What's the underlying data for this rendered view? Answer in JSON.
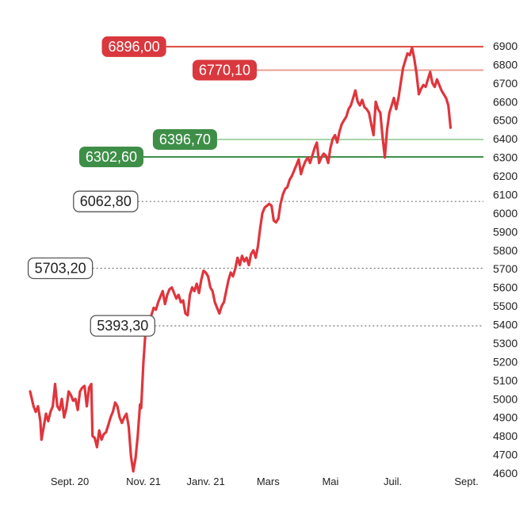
{
  "chart_data": {
    "type": "line",
    "title": "",
    "xlabel": "",
    "ylabel": "",
    "ylim": [
      4600,
      6900
    ],
    "y_ticks": [
      4600,
      4700,
      4800,
      4900,
      5000,
      5100,
      5200,
      5300,
      5400,
      5500,
      5600,
      5700,
      5800,
      5900,
      6000,
      6100,
      6200,
      6300,
      6400,
      6500,
      6600,
      6700,
      6800,
      6900
    ],
    "x_ticks": [
      {
        "label": "Sept. 20",
        "x": 35
      },
      {
        "label": "Nov. 21",
        "x": 100
      },
      {
        "label": "Janv. 21",
        "x": 155
      },
      {
        "label": "Mars",
        "x": 210
      },
      {
        "label": "Mai",
        "x": 265
      },
      {
        "label": "Juil.",
        "x": 320
      },
      {
        "label": "Sept.",
        "x": 385
      }
    ],
    "x_range": [
      0,
      400
    ],
    "series": [
      {
        "color": "#e0353c",
        "points": [
          [
            0,
            5040
          ],
          [
            3,
            4960
          ],
          [
            5,
            4930
          ],
          [
            7,
            4960
          ],
          [
            9,
            4880
          ],
          [
            10,
            4780
          ],
          [
            12,
            4850
          ],
          [
            14,
            4920
          ],
          [
            16,
            4880
          ],
          [
            18,
            4930
          ],
          [
            20,
            4960
          ],
          [
            22,
            5080
          ],
          [
            24,
            4960
          ],
          [
            26,
            4940
          ],
          [
            28,
            5000
          ],
          [
            30,
            4900
          ],
          [
            32,
            4950
          ],
          [
            34,
            5040
          ],
          [
            36,
            5020
          ],
          [
            38,
            4990
          ],
          [
            40,
            5000
          ],
          [
            42,
            4940
          ],
          [
            44,
            5040
          ],
          [
            46,
            5060
          ],
          [
            48,
            5070
          ],
          [
            50,
            4960
          ],
          [
            52,
            5060
          ],
          [
            54,
            5080
          ],
          [
            55,
            4800
          ],
          [
            57,
            4790
          ],
          [
            59,
            4740
          ],
          [
            61,
            4830
          ],
          [
            63,
            4780
          ],
          [
            65,
            4810
          ],
          [
            67,
            4820
          ],
          [
            69,
            4860
          ],
          [
            71,
            4900
          ],
          [
            73,
            4930
          ],
          [
            75,
            4980
          ],
          [
            77,
            4960
          ],
          [
            79,
            4900
          ],
          [
            81,
            4870
          ],
          [
            83,
            4900
          ],
          [
            85,
            4920
          ],
          [
            87,
            4850
          ],
          [
            89,
            4690
          ],
          [
            91,
            4610
          ],
          [
            93,
            4680
          ],
          [
            95,
            4800
          ],
          [
            97,
            4970
          ],
          [
            98,
            4950
          ],
          [
            100,
            5200
          ],
          [
            102,
            5380
          ],
          [
            103,
            5420
          ],
          [
            105,
            5370
          ],
          [
            107,
            5450
          ],
          [
            109,
            5490
          ],
          [
            111,
            5480
          ],
          [
            113,
            5520
          ],
          [
            115,
            5550
          ],
          [
            117,
            5580
          ],
          [
            119,
            5510
          ],
          [
            121,
            5560
          ],
          [
            123,
            5590
          ],
          [
            125,
            5600
          ],
          [
            127,
            5570
          ],
          [
            129,
            5540
          ],
          [
            131,
            5560
          ],
          [
            133,
            5520
          ],
          [
            135,
            5530
          ],
          [
            137,
            5460
          ],
          [
            139,
            5450
          ],
          [
            141,
            5560
          ],
          [
            143,
            5600
          ],
          [
            145,
            5580
          ],
          [
            147,
            5620
          ],
          [
            149,
            5570
          ],
          [
            151,
            5640
          ],
          [
            153,
            5690
          ],
          [
            155,
            5680
          ],
          [
            157,
            5660
          ],
          [
            159,
            5600
          ],
          [
            161,
            5580
          ],
          [
            163,
            5520
          ],
          [
            165,
            5490
          ],
          [
            167,
            5460
          ],
          [
            169,
            5500
          ],
          [
            171,
            5520
          ],
          [
            173,
            5580
          ],
          [
            175,
            5640
          ],
          [
            177,
            5680
          ],
          [
            179,
            5660
          ],
          [
            181,
            5700
          ],
          [
            183,
            5760
          ],
          [
            185,
            5720
          ],
          [
            187,
            5770
          ],
          [
            189,
            5740
          ],
          [
            191,
            5760
          ],
          [
            193,
            5720
          ],
          [
            195,
            5780
          ],
          [
            197,
            5800
          ],
          [
            199,
            5760
          ],
          [
            201,
            5820
          ],
          [
            203,
            5920
          ],
          [
            205,
            6000
          ],
          [
            207,
            6030
          ],
          [
            209,
            6040
          ],
          [
            211,
            6050
          ],
          [
            213,
            6040
          ],
          [
            215,
            5960
          ],
          [
            217,
            5950
          ],
          [
            219,
            5970
          ],
          [
            221,
            6050
          ],
          [
            223,
            6100
          ],
          [
            225,
            6130
          ],
          [
            227,
            6140
          ],
          [
            229,
            6180
          ],
          [
            231,
            6200
          ],
          [
            233,
            6230
          ],
          [
            235,
            6260
          ],
          [
            237,
            6290
          ],
          [
            239,
            6210
          ],
          [
            241,
            6250
          ],
          [
            243,
            6280
          ],
          [
            245,
            6300
          ],
          [
            247,
            6270
          ],
          [
            249,
            6310
          ],
          [
            251,
            6350
          ],
          [
            253,
            6380
          ],
          [
            255,
            6270
          ],
          [
            257,
            6300
          ],
          [
            259,
            6320
          ],
          [
            261,
            6310
          ],
          [
            263,
            6270
          ],
          [
            265,
            6350
          ],
          [
            267,
            6400
          ],
          [
            269,
            6420
          ],
          [
            271,
            6380
          ],
          [
            273,
            6440
          ],
          [
            275,
            6480
          ],
          [
            277,
            6500
          ],
          [
            279,
            6520
          ],
          [
            281,
            6560
          ],
          [
            283,
            6580
          ],
          [
            285,
            6620
          ],
          [
            287,
            6660
          ],
          [
            289,
            6600
          ],
          [
            291,
            6580
          ],
          [
            293,
            6610
          ],
          [
            295,
            6570
          ],
          [
            297,
            6560
          ],
          [
            299,
            6540
          ],
          [
            301,
            6480
          ],
          [
            303,
            6420
          ],
          [
            305,
            6600
          ],
          [
            307,
            6560
          ],
          [
            309,
            6540
          ],
          [
            311,
            6410
          ],
          [
            313,
            6300
          ],
          [
            315,
            6450
          ],
          [
            317,
            6540
          ],
          [
            319,
            6580
          ],
          [
            321,
            6620
          ],
          [
            323,
            6560
          ],
          [
            325,
            6620
          ],
          [
            327,
            6700
          ],
          [
            329,
            6780
          ],
          [
            331,
            6820
          ],
          [
            333,
            6860
          ],
          [
            335,
            6850
          ],
          [
            337,
            6890
          ],
          [
            339,
            6830
          ],
          [
            341,
            6750
          ],
          [
            343,
            6640
          ],
          [
            345,
            6670
          ],
          [
            347,
            6690
          ],
          [
            349,
            6680
          ],
          [
            351,
            6720
          ],
          [
            353,
            6760
          ],
          [
            355,
            6700
          ],
          [
            357,
            6680
          ],
          [
            359,
            6720
          ],
          [
            361,
            6690
          ],
          [
            363,
            6660
          ],
          [
            365,
            6640
          ],
          [
            367,
            6620
          ],
          [
            369,
            6580
          ],
          [
            371,
            6460
          ]
        ]
      }
    ],
    "reference_lines": [
      {
        "value": 6896.0,
        "label": "6896,00",
        "line_color": "#d94a3d",
        "line_style": "solid",
        "fill": "#d9383e",
        "text_color": "#ffffff",
        "label_x": 120
      },
      {
        "value": 6770.1,
        "label": "6770,10",
        "line_color": "#e89e90",
        "line_style": "solid",
        "fill": "#d9383e",
        "text_color": "#ffffff",
        "label_x": 200
      },
      {
        "value": 6396.7,
        "label": "6396,70",
        "line_color": "#a8d4a8",
        "line_style": "solid",
        "fill": "#3e8e48",
        "text_color": "#ffffff",
        "label_x": 165
      },
      {
        "value": 6302.6,
        "label": "6302,60",
        "line_color": "#3e8e48",
        "line_style": "solid",
        "fill": "#3e8e48",
        "text_color": "#ffffff",
        "label_x": 100
      },
      {
        "value": 6062.8,
        "label": "6062,80",
        "line_color": "#777777",
        "line_style": "dotted",
        "fill": "#ffffff",
        "text_color": "#222222",
        "label_x": 95
      },
      {
        "value": 5703.2,
        "label": "5703,20",
        "line_color": "#777777",
        "line_style": "dotted",
        "fill": "#ffffff",
        "text_color": "#222222",
        "label_x": 55
      },
      {
        "value": 5393.3,
        "label": "5393,30",
        "line_color": "#777777",
        "line_style": "dotted",
        "fill": "#ffffff",
        "text_color": "#222222",
        "label_x": 110
      }
    ]
  }
}
